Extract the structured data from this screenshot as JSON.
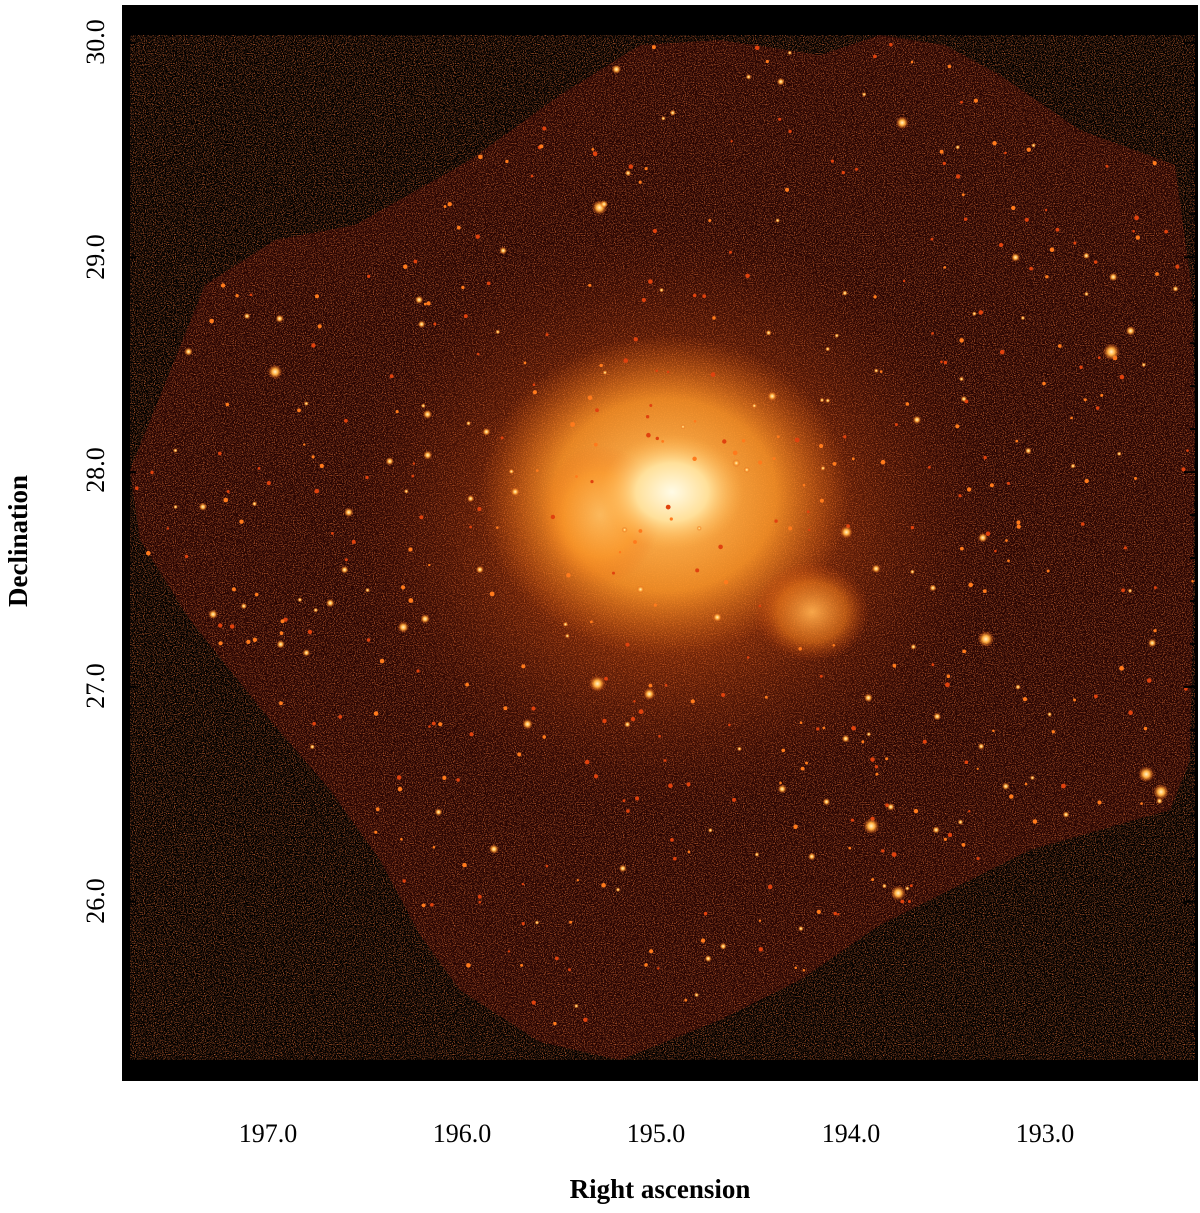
{
  "figure": {
    "xlabel": "Right ascension",
    "ylabel": "Declination",
    "x_ticks": [
      "197.0",
      "196.0",
      "195.0",
      "194.0",
      "193.0"
    ],
    "y_ticks": [
      "30.0",
      "29.0",
      "28.0",
      "27.0",
      "26.0"
    ],
    "x_range_deg": [
      197.73,
      192.23
    ],
    "y_range_deg": [
      25.17,
      30.17
    ],
    "x_major_values": [
      197.0,
      196.0,
      195.0,
      194.0,
      193.0
    ],
    "y_major_values": [
      30.0,
      29.0,
      28.0,
      27.0,
      26.0
    ],
    "minor_step_deg": 0.2,
    "colormap": "heat (black to red to orange to white)",
    "colors": {
      "background": "#000000",
      "dim_red": "#7a1a05",
      "orange": "#ff8c1a",
      "core": "#fff1c4"
    }
  }
}
